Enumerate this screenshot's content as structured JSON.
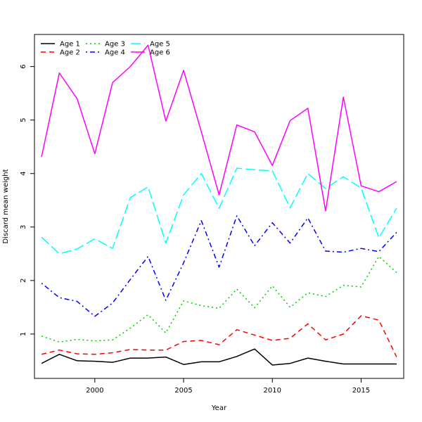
{
  "chart_data": {
    "type": "line",
    "title": "",
    "xlabel": "Year",
    "ylabel": "Discard mean weight",
    "xlim": [
      1996.6,
      2017.4
    ],
    "ylim": [
      0.17,
      6.6
    ],
    "xticks": [
      2000,
      2005,
      2010,
      2015
    ],
    "yticks": [
      1,
      2,
      3,
      4,
      5,
      6
    ],
    "x": [
      1997,
      1998,
      1999,
      2000,
      2001,
      2002,
      2003,
      2004,
      2005,
      2006,
      2007,
      2008,
      2009,
      2010,
      2011,
      2012,
      2013,
      2014,
      2015,
      2016,
      2017
    ],
    "legend_position": "top-left",
    "series": [
      {
        "name": "Age 1",
        "color": "#000000",
        "dash": "solid",
        "values": [
          0.45,
          0.62,
          0.5,
          0.49,
          0.47,
          0.55,
          0.55,
          0.57,
          0.43,
          0.48,
          0.48,
          0.58,
          0.72,
          0.42,
          0.45,
          0.55,
          0.49,
          0.44,
          0.44,
          0.44,
          0.44
        ]
      },
      {
        "name": "Age 2",
        "color": "#ff0000",
        "dash": "dashed",
        "values": [
          0.62,
          0.7,
          0.63,
          0.62,
          0.65,
          0.71,
          0.7,
          0.7,
          0.86,
          0.88,
          0.8,
          1.08,
          0.98,
          0.88,
          0.92,
          1.19,
          0.89,
          1.0,
          1.34,
          1.26,
          0.57
        ]
      },
      {
        "name": "Age 3",
        "color": "#00cd00",
        "dash": "dotted",
        "values": [
          0.96,
          0.85,
          0.9,
          0.87,
          0.89,
          1.11,
          1.36,
          1.02,
          1.62,
          1.53,
          1.48,
          1.84,
          1.49,
          1.9,
          1.5,
          1.77,
          1.7,
          1.91,
          1.88,
          2.45,
          2.15
        ]
      },
      {
        "name": "Age 4",
        "color": "#0000ff",
        "dash": "dotdash",
        "values": [
          1.95,
          1.68,
          1.61,
          1.33,
          1.58,
          2.02,
          2.45,
          1.63,
          2.33,
          3.12,
          2.25,
          3.21,
          2.65,
          3.08,
          2.7,
          3.17,
          2.55,
          2.53,
          2.6,
          2.54,
          2.9
        ]
      },
      {
        "name": "Age 5",
        "color": "#00ffff",
        "dash": "longdash",
        "values": [
          2.81,
          2.5,
          2.59,
          2.78,
          2.6,
          3.55,
          3.75,
          2.7,
          3.6,
          4.0,
          3.35,
          4.1,
          4.07,
          4.05,
          3.36,
          4.0,
          3.72,
          3.94,
          3.73,
          2.8,
          3.35
        ]
      },
      {
        "name": "Age 6",
        "color": "#ff00ff",
        "dash": "solid",
        "values": [
          4.31,
          5.88,
          5.4,
          4.37,
          5.7,
          6.0,
          6.4,
          4.98,
          5.93,
          4.78,
          3.6,
          4.91,
          4.78,
          4.15,
          4.99,
          5.22,
          3.3,
          5.43,
          3.77,
          3.66,
          3.85
        ]
      }
    ]
  }
}
